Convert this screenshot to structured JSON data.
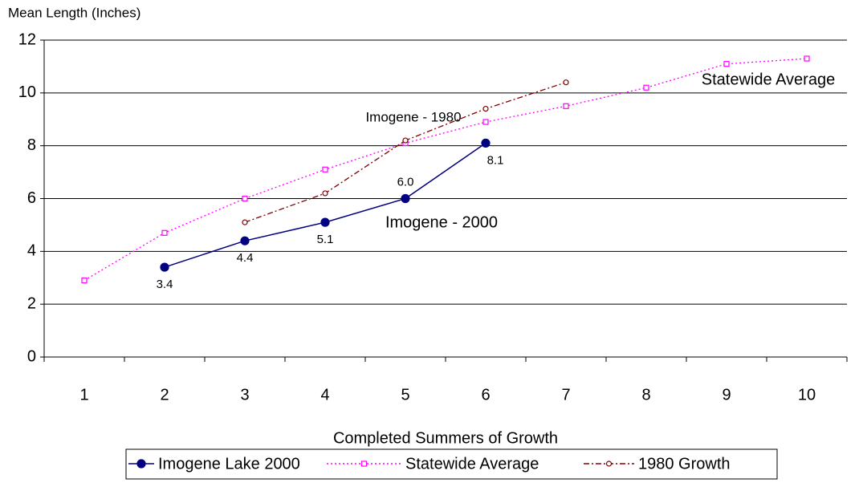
{
  "chart_data": {
    "type": "line",
    "y_label": "Mean Length (Inches)",
    "x_label": "Completed Summers of Growth",
    "categories": [
      "1",
      "2",
      "3",
      "4",
      "5",
      "6",
      "7",
      "8",
      "9",
      "10"
    ],
    "ylim": [
      0,
      12
    ],
    "yticks": [
      0,
      2,
      4,
      6,
      8,
      10,
      12
    ],
    "grid": true,
    "legend": "bottom",
    "series": [
      {
        "name": "Imogene Lake 2000",
        "color": "#000080",
        "style": "solid",
        "marker": "filled-circle",
        "values": [
          null,
          3.4,
          4.4,
          5.1,
          6.0,
          8.1,
          null,
          null,
          null,
          null
        ],
        "value_labels": [
          null,
          "3.4",
          "4.4",
          "5.1",
          "6.0",
          "8.1",
          null,
          null,
          null,
          null
        ]
      },
      {
        "name": "Statewide Average",
        "color": "#ff00ff",
        "style": "dotted",
        "marker": "open-square",
        "values": [
          2.9,
          4.7,
          6.0,
          7.1,
          8.1,
          8.9,
          9.5,
          10.2,
          11.1,
          11.3
        ]
      },
      {
        "name": "1980 Growth",
        "color": "#800000",
        "style": "dashdot",
        "marker": "open-circle",
        "values": [
          null,
          null,
          5.1,
          6.2,
          8.2,
          9.4,
          10.4,
          null,
          null,
          null
        ]
      }
    ],
    "annotations": [
      "Imogene - 1980",
      "Imogene - 2000",
      "Statewide Average"
    ]
  }
}
